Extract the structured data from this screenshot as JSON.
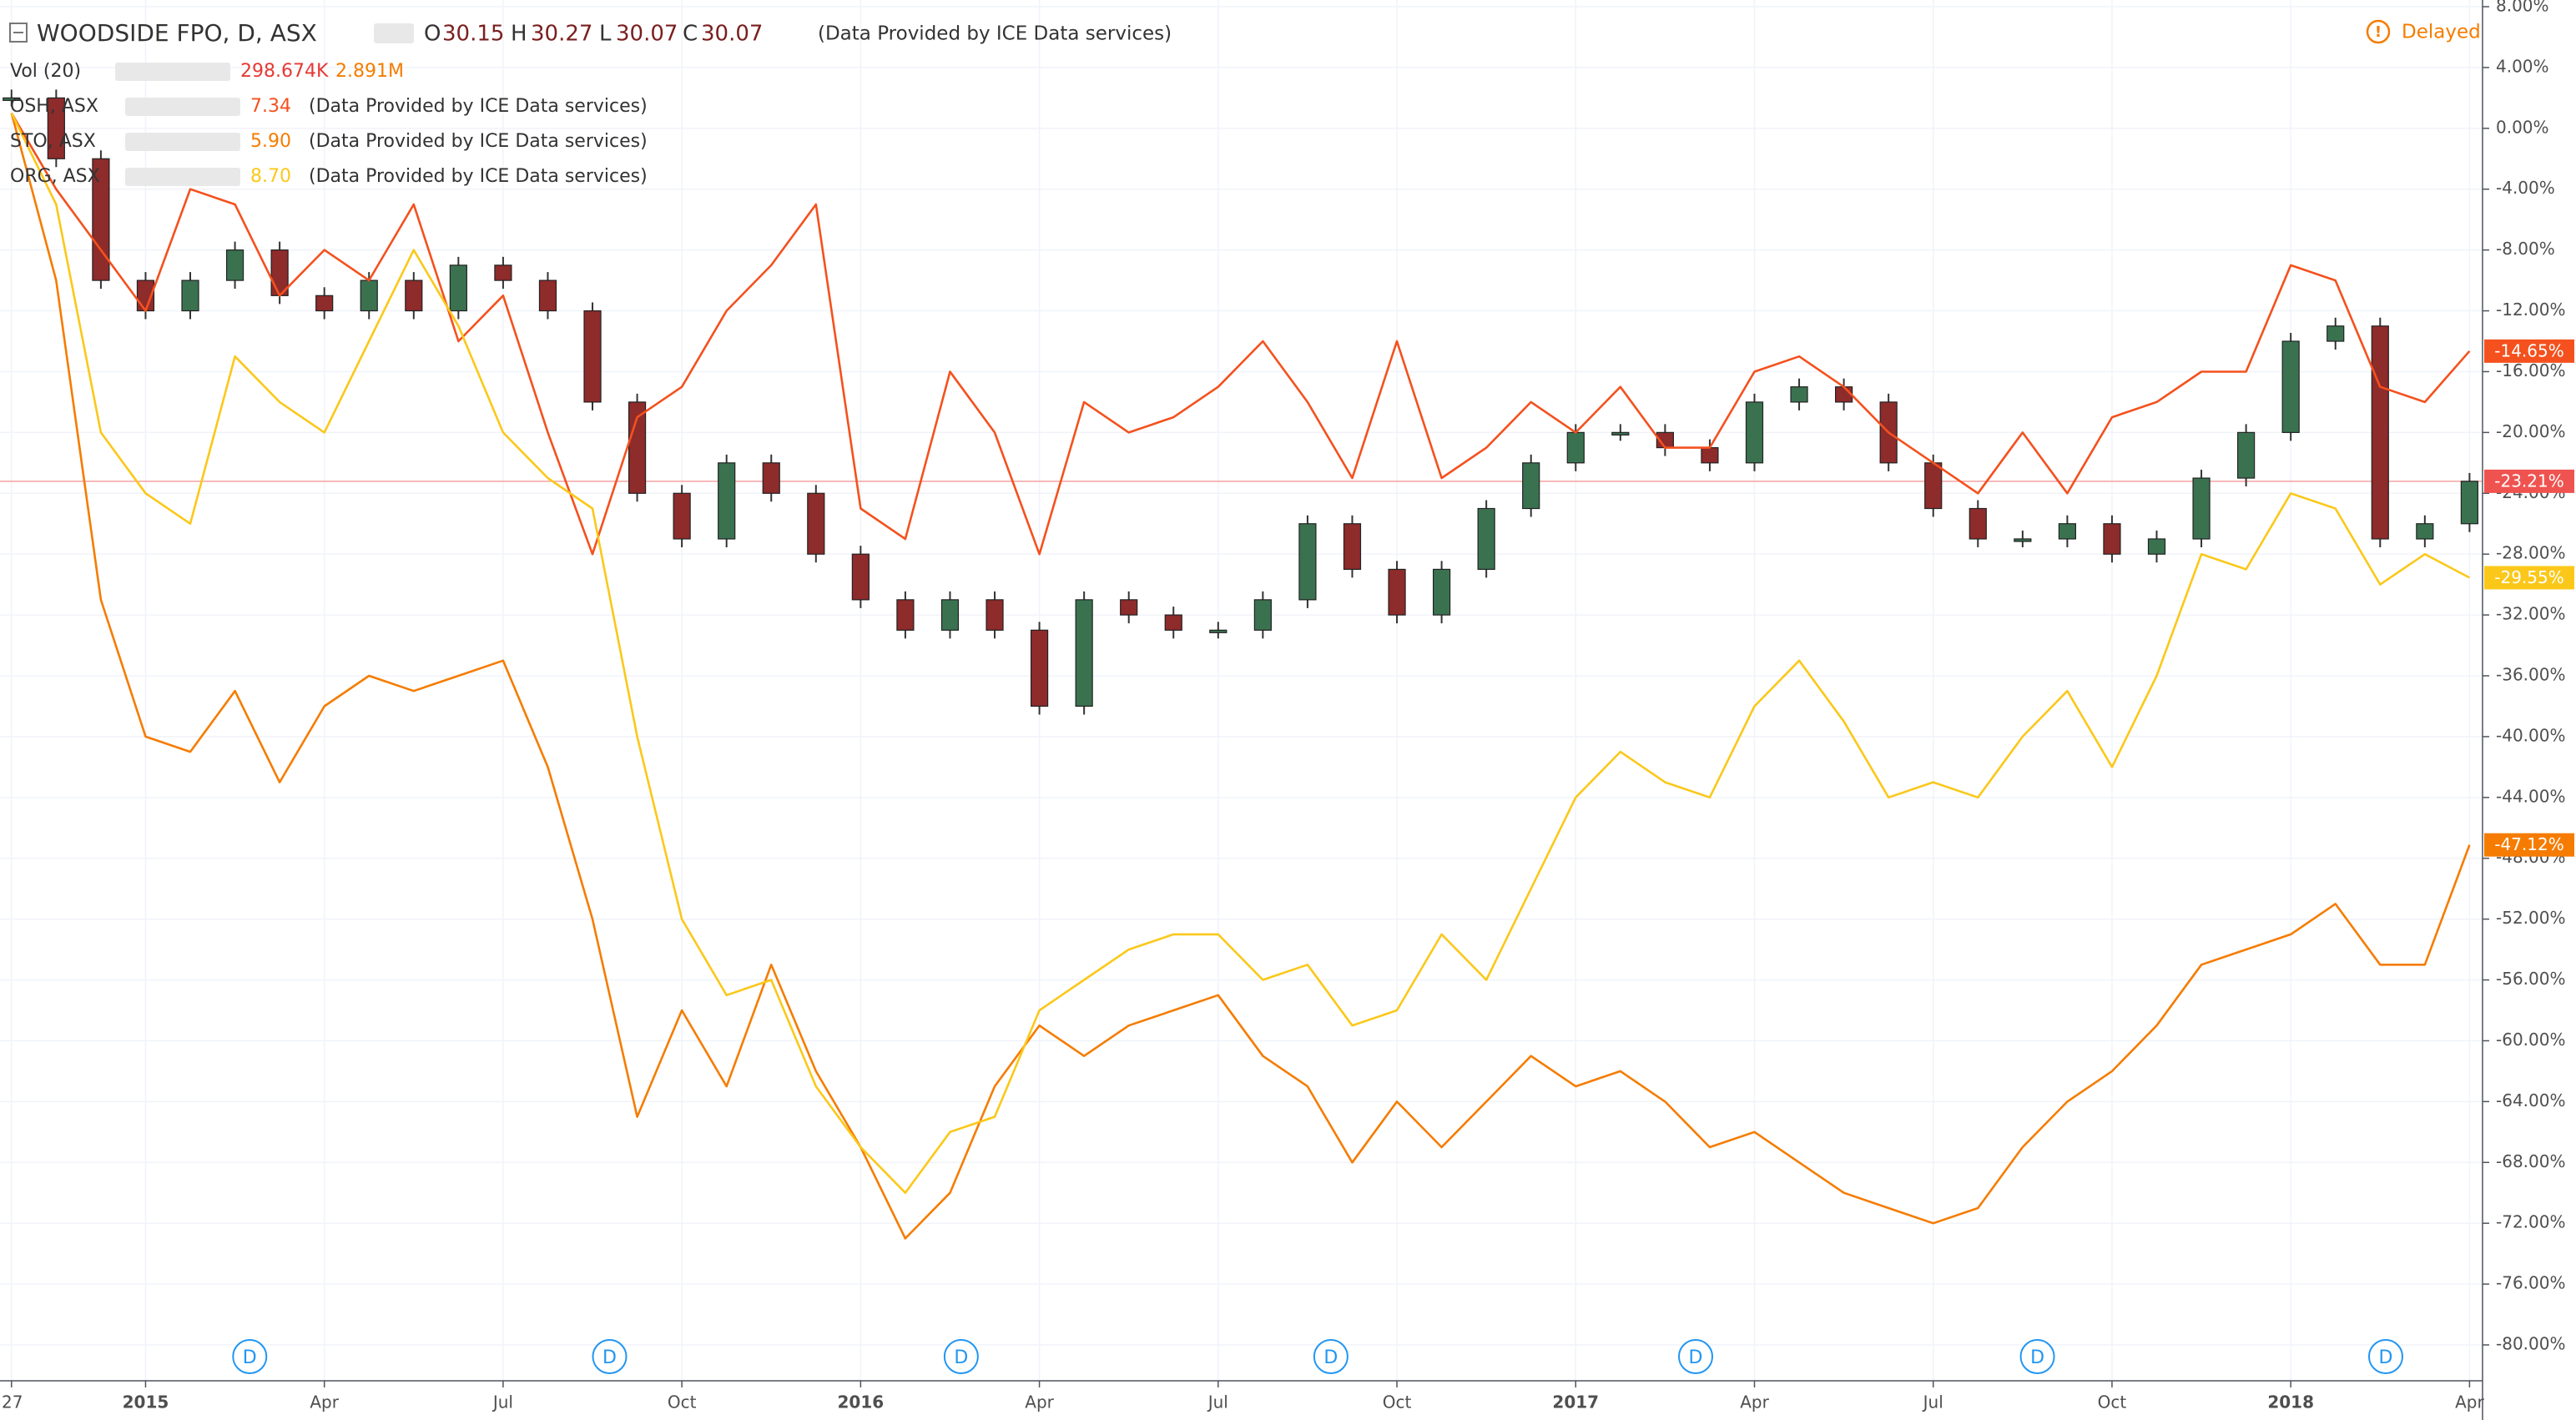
{
  "chart_data": {
    "type": "line",
    "header": {
      "symbol": "WOODSIDE FPO, D, ASX",
      "o_label": "O",
      "open": "30.15",
      "h_label": "H",
      "high": "30.27",
      "l_label": "L",
      "low": "30.07",
      "c_label": "C",
      "close": "30.07",
      "provider": "(Data Provided by ICE Data services)"
    },
    "status": "Delayed",
    "volume_legend": {
      "name": "Vol (20)",
      "value": "298.674K",
      "average": "2.891M"
    },
    "provider_note": "(Data Provided by ICE Data services)",
    "dividend_label": "D",
    "categories": [
      "27",
      null,
      null,
      "2015",
      null,
      null,
      null,
      "Apr",
      null,
      null,
      null,
      "Jul",
      null,
      null,
      null,
      "Oct",
      null,
      null,
      null,
      "2016",
      null,
      null,
      null,
      "Apr",
      null,
      null,
      null,
      "Jul",
      null,
      null,
      null,
      "Oct",
      null,
      null,
      null,
      "2017",
      null,
      null,
      null,
      "Apr",
      null,
      null,
      null,
      "Jul",
      null,
      null,
      null,
      "Oct",
      null,
      null,
      null,
      "2018",
      null,
      null,
      null,
      "Apr"
    ],
    "series": [
      {
        "name": "WOODSIDE FPO",
        "style": "candle",
        "up_color": "#3a7250",
        "down_color": "#8e2b2b",
        "tag_color": "#ef5350",
        "values": [
          2,
          -2,
          -10,
          -12,
          -10,
          -8,
          -11,
          -12,
          -10,
          -12,
          -9,
          -10,
          -12,
          -18,
          -24,
          -27,
          -22,
          -24,
          -28,
          -31,
          -33,
          -31,
          -33,
          -38,
          -31,
          -32,
          -33,
          -33,
          -31,
          -26,
          -29,
          -32,
          -29,
          -25,
          -22,
          -20,
          -20,
          -21,
          -22,
          -18,
          -17,
          -18,
          -22,
          -25,
          -27,
          -27,
          -26,
          -28,
          -27,
          -23,
          -20,
          -14,
          -13,
          -27,
          -26,
          -23.21
        ],
        "value_labels": [
          null,
          null,
          null,
          null,
          null,
          null,
          null,
          null,
          null,
          null,
          null,
          null,
          null,
          null,
          null,
          null,
          null,
          null,
          null,
          null,
          null,
          null,
          null,
          null,
          null,
          null,
          null,
          null,
          null,
          null,
          null,
          null,
          null,
          null,
          null,
          null,
          null,
          null,
          null,
          null,
          null,
          null,
          null,
          null,
          null,
          null,
          null,
          null,
          null,
          null,
          null,
          null,
          null,
          null,
          null,
          "-23.21%"
        ]
      },
      {
        "name": "OSH, ASX",
        "legend_value": "7.34",
        "style": "line",
        "color": "#f4511e",
        "values": [
          1,
          -4,
          -8,
          -12,
          -4,
          -5,
          -11,
          -8,
          -10,
          -5,
          -14,
          -11,
          -20,
          -28,
          -19,
          -17,
          -12,
          -9,
          -5,
          -25,
          -27,
          -16,
          -20,
          -28,
          -18,
          -20,
          -19,
          -17,
          -14,
          -18,
          -23,
          -14,
          -23,
          -21,
          -18,
          -20,
          -17,
          -21,
          -21,
          -16,
          -15,
          -17,
          -20,
          -22,
          -24,
          -20,
          -24,
          -19,
          -18,
          -16,
          -16,
          -9,
          -10,
          -17,
          -18,
          -14.65
        ],
        "value_labels": [
          null,
          null,
          null,
          null,
          null,
          null,
          null,
          null,
          null,
          null,
          null,
          null,
          null,
          null,
          null,
          null,
          null,
          null,
          null,
          null,
          null,
          null,
          null,
          null,
          null,
          null,
          null,
          null,
          null,
          null,
          null,
          null,
          null,
          null,
          null,
          null,
          null,
          null,
          null,
          null,
          null,
          null,
          null,
          null,
          null,
          null,
          null,
          null,
          null,
          null,
          null,
          null,
          null,
          null,
          null,
          "-14.65%"
        ]
      },
      {
        "name": "STO, ASX",
        "legend_value": "5.90",
        "style": "line",
        "color": "#f57c00",
        "values": [
          1,
          -10,
          -31,
          -40,
          -41,
          -37,
          -43,
          -38,
          -36,
          -37,
          -36,
          -35,
          -42,
          -52,
          -65,
          -58,
          -63,
          -55,
          -62,
          -67,
          -73,
          -70,
          -63,
          -59,
          -61,
          -59,
          -58,
          -57,
          -61,
          -63,
          -68,
          -64,
          -67,
          -64,
          -61,
          -63,
          -62,
          -64,
          -67,
          -66,
          -68,
          -70,
          -71,
          -72,
          -71,
          -67,
          -64,
          -62,
          -59,
          -55,
          -54,
          -53,
          -51,
          -55,
          -55,
          -47.12
        ],
        "value_labels": [
          null,
          null,
          null,
          null,
          null,
          null,
          null,
          null,
          null,
          null,
          null,
          null,
          null,
          null,
          null,
          null,
          null,
          null,
          null,
          null,
          null,
          null,
          null,
          null,
          null,
          null,
          null,
          null,
          null,
          null,
          null,
          null,
          null,
          null,
          null,
          null,
          null,
          null,
          null,
          null,
          null,
          null,
          null,
          null,
          null,
          null,
          null,
          null,
          null,
          null,
          null,
          null,
          null,
          null,
          null,
          "-47.12%"
        ]
      },
      {
        "name": "ORG, ASX",
        "legend_value": "8.70",
        "style": "line",
        "color": "#fbc81a",
        "values": [
          1,
          -5,
          -20,
          -24,
          -26,
          -15,
          -18,
          -20,
          -14,
          -8,
          -13,
          -20,
          -23,
          -25,
          -40,
          -52,
          -57,
          -56,
          -63,
          -67,
          -70,
          -66,
          -65,
          -58,
          -56,
          -54,
          -53,
          -53,
          -56,
          -55,
          -59,
          -58,
          -53,
          -56,
          -50,
          -44,
          -41,
          -43,
          -44,
          -38,
          -35,
          -39,
          -44,
          -43,
          -44,
          -40,
          -37,
          -42,
          -36,
          -28,
          -29,
          -24,
          -25,
          -30,
          -28,
          -29.55
        ],
        "value_labels": [
          null,
          null,
          null,
          null,
          null,
          null,
          null,
          null,
          null,
          null,
          null,
          null,
          null,
          null,
          null,
          null,
          null,
          null,
          null,
          null,
          null,
          null,
          null,
          null,
          null,
          null,
          null,
          null,
          null,
          null,
          null,
          null,
          null,
          null,
          null,
          null,
          null,
          null,
          null,
          null,
          null,
          null,
          null,
          null,
          null,
          null,
          null,
          null,
          null,
          null,
          null,
          null,
          null,
          null,
          null,
          "-29.55%"
        ]
      }
    ],
    "ylim": [
      -80,
      8
    ],
    "yticks": [
      {
        "value": 8,
        "label": "8.00%"
      },
      {
        "value": 4,
        "label": "4.00%"
      },
      {
        "value": 0,
        "label": "0.00%"
      },
      {
        "value": -4,
        "label": "-4.00%"
      },
      {
        "value": -8,
        "label": "-8.00%"
      },
      {
        "value": -12,
        "label": "-12.00%"
      },
      {
        "value": -16,
        "label": "-16.00%"
      },
      {
        "value": -20,
        "label": "-20.00%"
      },
      {
        "value": -24,
        "label": "-24.00%"
      },
      {
        "value": -28,
        "label": "-28.00%"
      },
      {
        "value": -32,
        "label": "-32.00%"
      },
      {
        "value": -36,
        "label": "-36.00%"
      },
      {
        "value": -40,
        "label": "-40.00%"
      },
      {
        "value": -44,
        "label": "-44.00%"
      },
      {
        "value": -48,
        "label": "-48.00%"
      },
      {
        "value": -52,
        "label": "-52.00%"
      },
      {
        "value": -56,
        "label": "-56.00%"
      },
      {
        "value": -60,
        "label": "-60.00%"
      },
      {
        "value": -64,
        "label": "-64.00%"
      },
      {
        "value": -68,
        "label": "-68.00%"
      },
      {
        "value": -72,
        "label": "-72.00%"
      },
      {
        "value": -76,
        "label": "-76.00%"
      },
      {
        "value": -80,
        "label": "-80.00%"
      }
    ],
    "grid": true
  }
}
